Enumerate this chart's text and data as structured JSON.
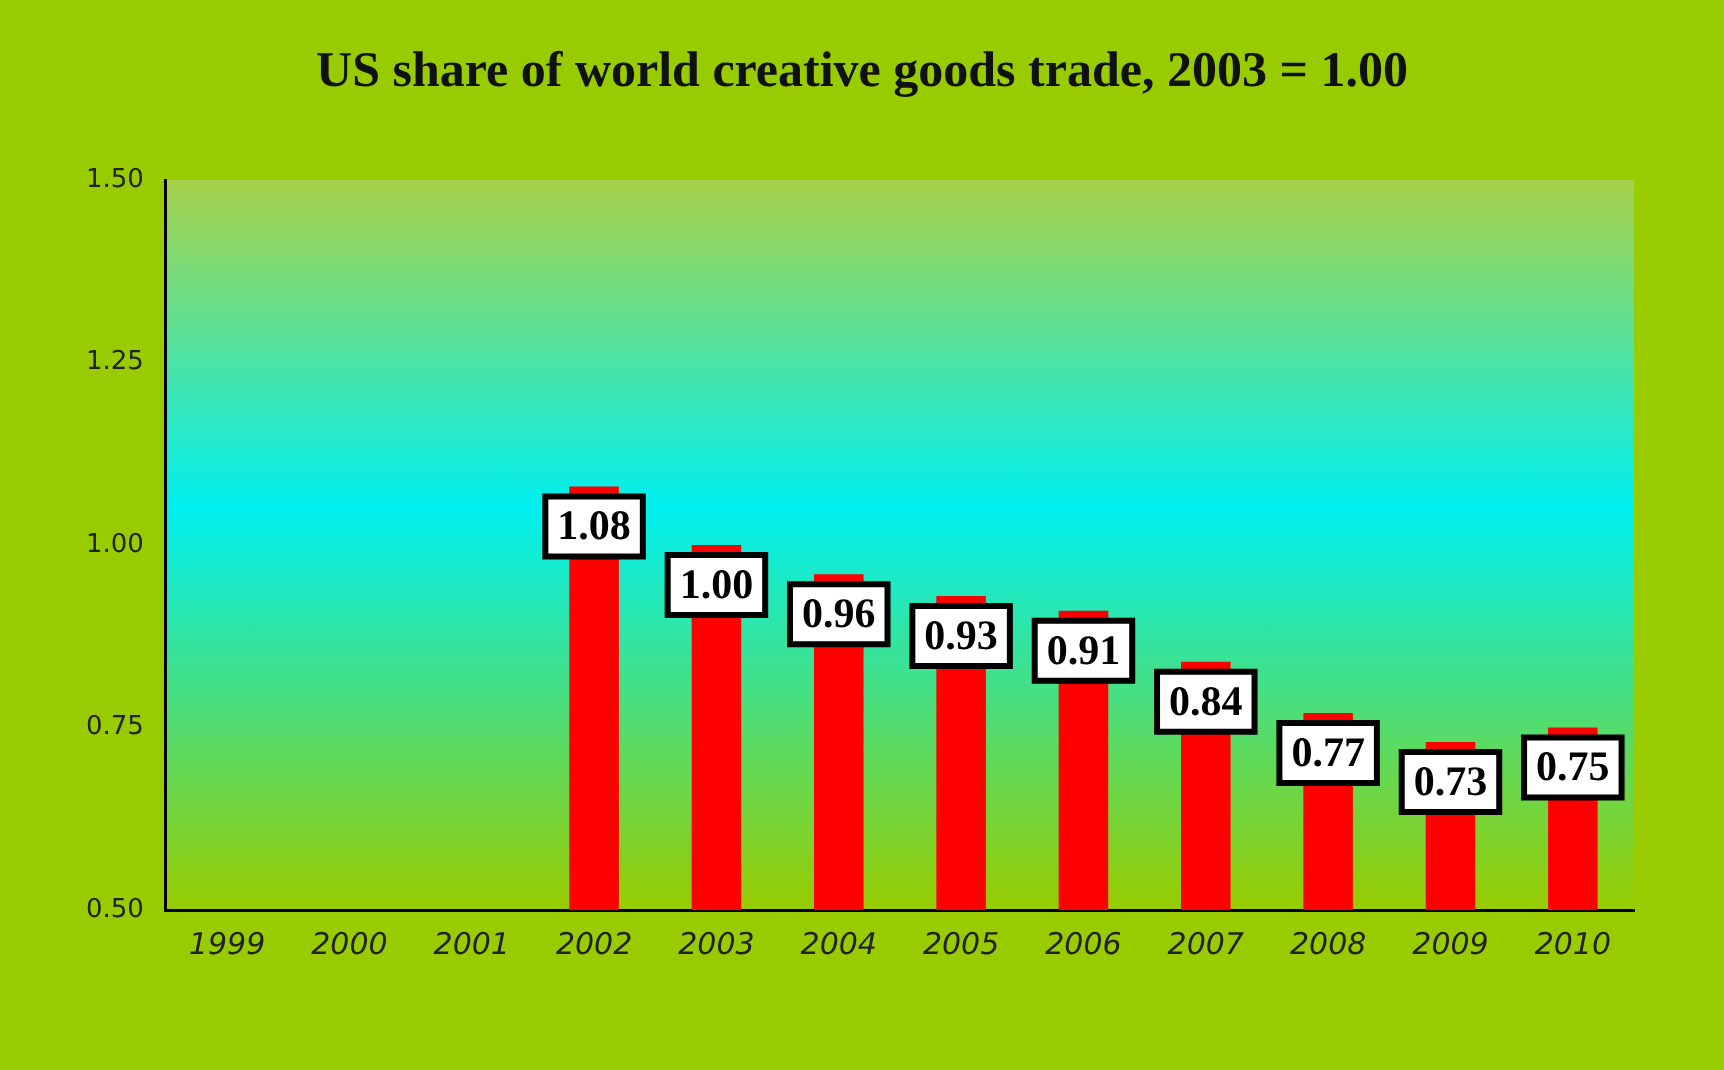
{
  "chart_data": {
    "type": "bar",
    "title": "US share of world creative goods trade, 2003 = 1.00",
    "categories": [
      "1999",
      "2000",
      "2001",
      "2002",
      "2003",
      "2004",
      "2005",
      "2006",
      "2007",
      "2008",
      "2009",
      "2010"
    ],
    "values": [
      null,
      null,
      null,
      1.08,
      1.0,
      0.96,
      0.93,
      0.91,
      0.84,
      0.77,
      0.73,
      0.75
    ],
    "value_labels": [
      null,
      null,
      null,
      "1.08",
      "1.00",
      "0.96",
      "0.93",
      "0.91",
      "0.84",
      "0.77",
      "0.73",
      "0.75"
    ],
    "color": "#ff0000",
    "ylim": [
      0.5,
      1.5
    ],
    "yticks": [
      {
        "value": 0.5,
        "label": "0.50"
      },
      {
        "value": 0.75,
        "label": "0.75"
      },
      {
        "value": 1.0,
        "label": "1.00"
      },
      {
        "value": 1.25,
        "label": "1.25"
      },
      {
        "value": 1.5,
        "label": "1.50"
      }
    ],
    "grid": false,
    "legend": false
  }
}
